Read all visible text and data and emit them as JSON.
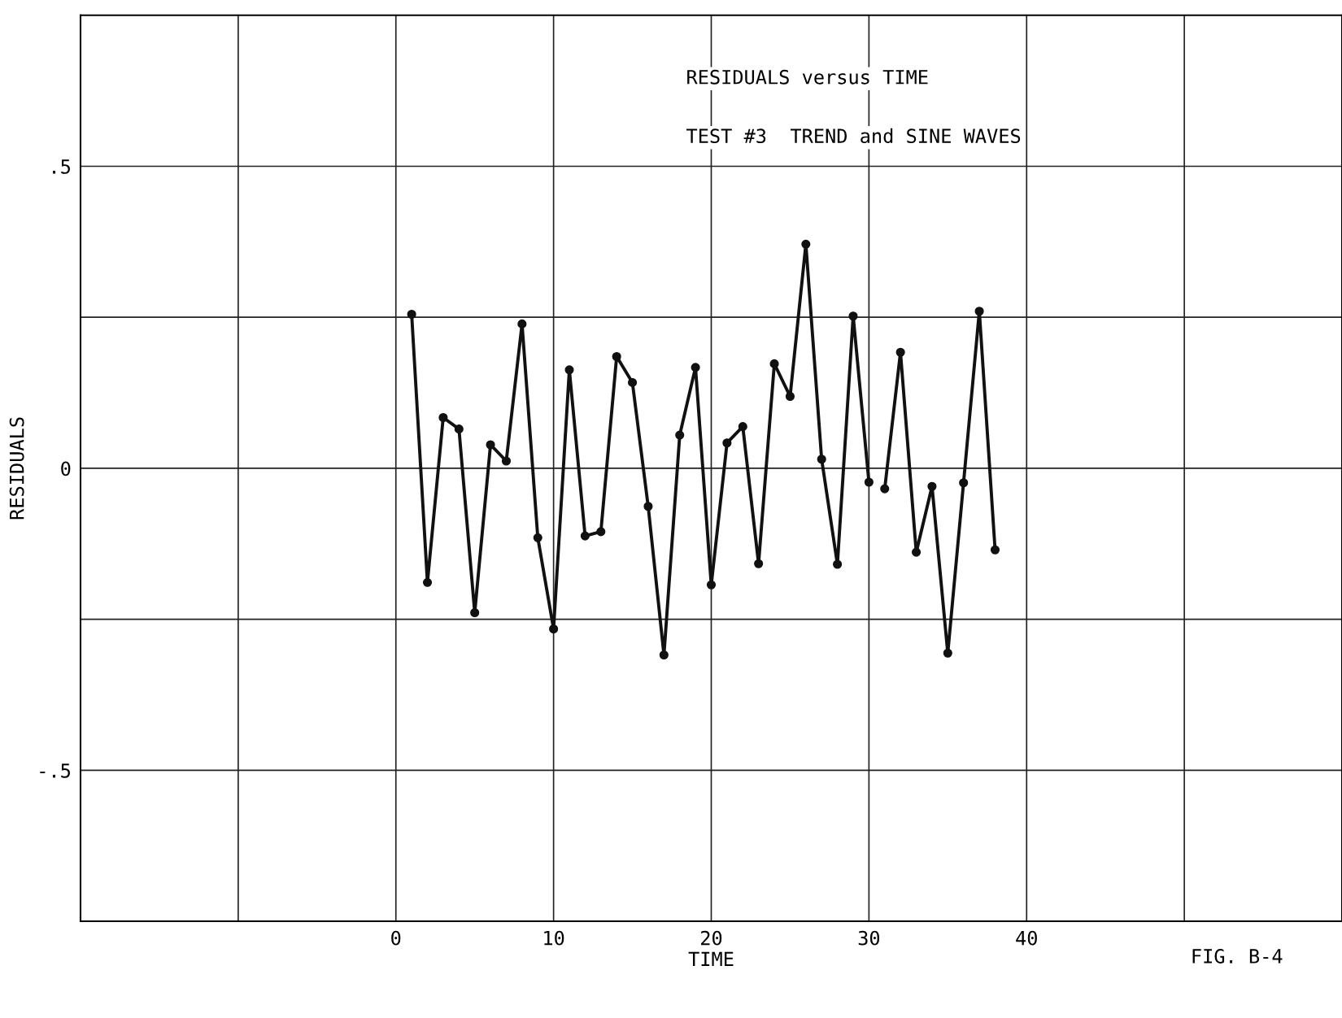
{
  "chart_data": {
    "type": "line",
    "title": "RESIDUALS versus TIME",
    "subtitle": "TEST #3  TREND and SINE WAVES",
    "xlabel": "TIME",
    "ylabel": "RESIDUALS",
    "annotations": [
      "FIG. B-4"
    ],
    "series": [
      {
        "color": "#111111",
        "x": [
          1,
          2,
          3,
          4,
          5,
          6,
          7,
          8,
          9,
          10,
          11,
          12,
          13,
          14,
          15,
          16,
          17,
          18,
          19,
          20,
          21,
          22,
          23,
          24,
          25,
          26,
          27,
          28,
          29,
          30
        ],
        "values": [
          0.255,
          -0.189,
          0.084,
          0.065,
          -0.239,
          0.039,
          0.012,
          0.239,
          -0.115,
          -0.266,
          0.163,
          -0.112,
          -0.105,
          0.185,
          0.142,
          -0.063,
          -0.309,
          0.055,
          0.167,
          -0.193,
          0.042,
          0.069,
          -0.158,
          0.173,
          0.119,
          0.371,
          0.015,
          -0.159,
          0.252,
          -0.023
        ]
      },
      {
        "color": "#111111",
        "x": [
          31,
          32,
          33,
          34,
          35,
          36,
          37,
          38
        ],
        "values": [
          -0.034,
          0.192,
          -0.139,
          -0.03,
          -0.306,
          -0.024,
          0.26,
          -0.135
        ]
      }
    ],
    "xlim": [
      -20,
      60
    ],
    "ylim": [
      -0.75,
      0.75
    ],
    "xticks": [
      {
        "value": -20,
        "label": null
      },
      {
        "value": -10,
        "label": null
      },
      0,
      10,
      20,
      30,
      40,
      {
        "value": 50,
        "label": null
      },
      {
        "value": 60,
        "label": null
      }
    ],
    "yticks": [
      {
        "value": -0.5,
        "label": "-.5"
      },
      {
        "value": -0.25,
        "label": null
      },
      0,
      {
        "value": 0.25,
        "label": null
      },
      {
        "value": 0.5,
        "label": ".5"
      }
    ],
    "grid": true,
    "marker": "circle",
    "line_style": "solid"
  }
}
